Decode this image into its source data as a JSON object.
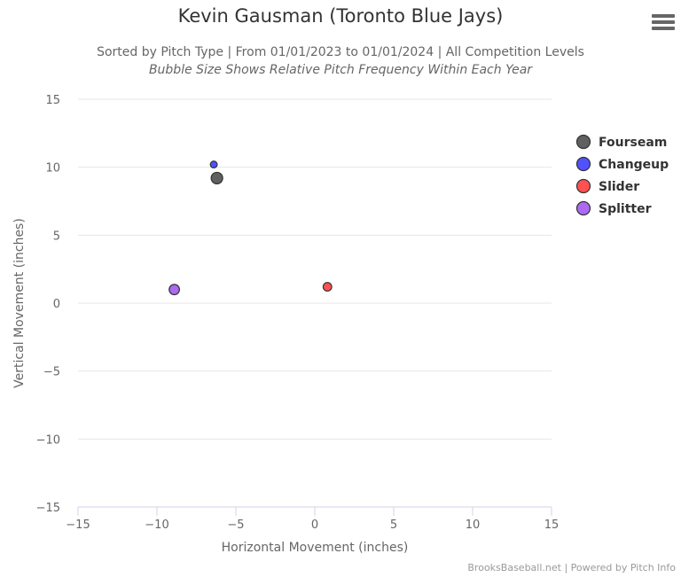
{
  "header": {
    "title": "Kevin Gausman (Toronto Blue Jays)",
    "subtitle": "Sorted by Pitch Type | From 01/01/2023 to 01/01/2024 | All Competition Levels",
    "subtitle2": "Bubble Size Shows Relative Pitch Frequency Within Each Year"
  },
  "menu_icon": "hamburger-menu-icon",
  "credits": "BrooksBaseball.net | Powered by Pitch Info",
  "chart_data": {
    "type": "scatter",
    "bubble": true,
    "xlabel": "Horizontal Movement (inches)",
    "ylabel": "Vertical Movement (inches)",
    "xlim": [
      -15,
      15
    ],
    "ylim": [
      -15,
      15
    ],
    "xticks": [
      -15,
      -10,
      -5,
      0,
      5,
      10,
      15
    ],
    "yticks": [
      15,
      10,
      5,
      0,
      -5,
      -10,
      -15
    ],
    "grid": "horizontal",
    "legend_position": "right",
    "series": [
      {
        "name": "Fourseam",
        "color": "#444444",
        "x": -6.2,
        "y": 9.2,
        "size": 1.0
      },
      {
        "name": "Changeup",
        "color": "#3333ff",
        "x": -6.4,
        "y": 10.2,
        "size": 0.35
      },
      {
        "name": "Slider",
        "color": "#ff3333",
        "x": 0.8,
        "y": 1.2,
        "size": 0.55
      },
      {
        "name": "Splitter",
        "color": "#9f4fef",
        "x": -8.9,
        "y": 1.0,
        "size": 0.8
      }
    ]
  }
}
